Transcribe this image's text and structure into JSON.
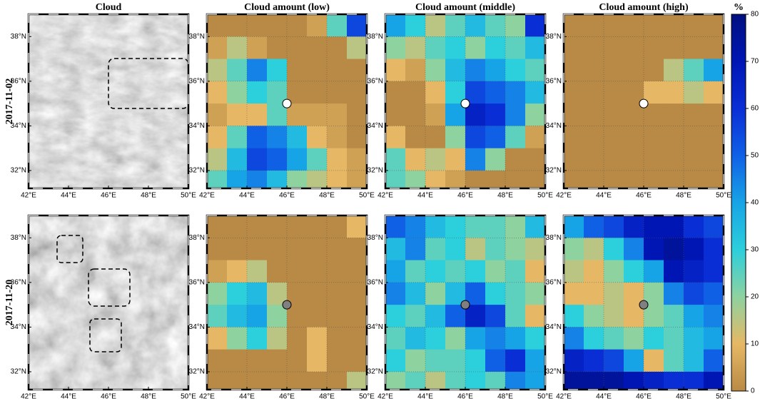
{
  "chart_data": {
    "type": "heatmap",
    "column_titles": [
      "Cloud",
      "Cloud amount (low)",
      "Cloud amount (middle)",
      "Cloud amount (high)"
    ],
    "xlim": [
      42,
      50
    ],
    "ylim": [
      31.2,
      39
    ],
    "xticks": [
      {
        "value": 42,
        "label": "42°E"
      },
      {
        "value": 44,
        "label": "44°E"
      },
      {
        "value": 46,
        "label": "46°E"
      },
      {
        "value": 48,
        "label": "48°E"
      },
      {
        "value": 50,
        "label": "50°E"
      }
    ],
    "yticks": [
      {
        "value": 32,
        "label": "32°N"
      },
      {
        "value": 34,
        "label": "34°N"
      },
      {
        "value": 36,
        "label": "36°N"
      },
      {
        "value": 38,
        "label": "38°N"
      }
    ],
    "cell_lon_edges": [
      42,
      43,
      44,
      45,
      46,
      47,
      48,
      49,
      50
    ],
    "cell_lat_edges": [
      39,
      38,
      37,
      36,
      35,
      34,
      33,
      32,
      31
    ],
    "station": {
      "lon": 46,
      "lat": 35
    },
    "colorbar": {
      "label": "%",
      "clim": [
        0,
        80
      ],
      "ticks": [
        0,
        10,
        20,
        30,
        40,
        50,
        60,
        70,
        80
      ],
      "colors": [
        "#b88a45",
        "#e6b865",
        "#8ed2a0",
        "#2ccfdc",
        "#17a4e6",
        "#1060e6",
        "#0a2ed6",
        "#0016b4",
        "#001080"
      ]
    },
    "rows": [
      {
        "label": "2017-11-02",
        "station_color": "#ffffff",
        "heatmaps": [
          [
            [
              0,
              0,
              0,
              0,
              0,
              5,
              25,
              55
            ],
            [
              5,
              15,
              5,
              0,
              0,
              0,
              0,
              15
            ],
            [
              15,
              25,
              45,
              30,
              0,
              0,
              0,
              0
            ],
            [
              10,
              20,
              30,
              25,
              0,
              0,
              0,
              0
            ],
            [
              5,
              10,
              10,
              25,
              5,
              5,
              5,
              0
            ],
            [
              10,
              25,
              50,
              45,
              35,
              10,
              5,
              0
            ],
            [
              15,
              35,
              55,
              50,
              40,
              25,
              10,
              5
            ],
            [
              25,
              40,
              45,
              35,
              20,
              15,
              10,
              5
            ]
          ],
          [
            [
              40,
              30,
              15,
              25,
              35,
              25,
              20,
              60
            ],
            [
              20,
              15,
              25,
              30,
              20,
              30,
              25,
              35
            ],
            [
              10,
              5,
              20,
              35,
              45,
              40,
              30,
              25
            ],
            [
              0,
              0,
              10,
              30,
              55,
              50,
              45,
              35
            ],
            [
              0,
              0,
              5,
              40,
              65,
              60,
              45,
              20
            ],
            [
              10,
              0,
              0,
              20,
              55,
              50,
              25,
              5
            ],
            [
              25,
              10,
              15,
              10,
              45,
              20,
              0,
              0
            ],
            [
              25,
              20,
              10,
              5,
              0,
              0,
              0,
              0
            ]
          ],
          [
            [
              0,
              0,
              0,
              0,
              0,
              0,
              0,
              0
            ],
            [
              0,
              0,
              0,
              0,
              0,
              0,
              0,
              0
            ],
            [
              0,
              0,
              0,
              0,
              0,
              15,
              25,
              40
            ],
            [
              0,
              0,
              0,
              0,
              10,
              10,
              15,
              10
            ],
            [
              0,
              0,
              0,
              0,
              0,
              0,
              0,
              0
            ],
            [
              0,
              0,
              0,
              0,
              0,
              0,
              0,
              0
            ],
            [
              0,
              0,
              0,
              0,
              0,
              0,
              0,
              0
            ],
            [
              0,
              0,
              0,
              0,
              0,
              0,
              0,
              0
            ]
          ]
        ]
      },
      {
        "label": "2017-11-20",
        "station_color": "#808080",
        "heatmaps": [
          [
            [
              0,
              0,
              0,
              0,
              0,
              0,
              0,
              10
            ],
            [
              0,
              0,
              0,
              0,
              0,
              0,
              0,
              0
            ],
            [
              5,
              10,
              15,
              0,
              0,
              0,
              0,
              0
            ],
            [
              20,
              30,
              35,
              15,
              0,
              0,
              0,
              0
            ],
            [
              25,
              35,
              40,
              20,
              0,
              0,
              0,
              0
            ],
            [
              10,
              20,
              30,
              15,
              0,
              10,
              0,
              0
            ],
            [
              0,
              0,
              0,
              0,
              0,
              10,
              0,
              0
            ],
            [
              0,
              0,
              0,
              0,
              0,
              0,
              0,
              15
            ]
          ],
          [
            [
              50,
              45,
              35,
              30,
              25,
              25,
              20,
              35
            ],
            [
              35,
              45,
              25,
              30,
              15,
              25,
              20,
              15
            ],
            [
              40,
              25,
              30,
              25,
              30,
              20,
              25,
              10
            ],
            [
              45,
              35,
              20,
              35,
              50,
              30,
              25,
              20
            ],
            [
              30,
              25,
              35,
              50,
              65,
              55,
              25,
              10
            ],
            [
              25,
              35,
              30,
              20,
              40,
              45,
              40,
              30
            ],
            [
              30,
              20,
              25,
              25,
              30,
              50,
              60,
              40
            ],
            [
              20,
              25,
              15,
              25,
              30,
              25,
              45,
              40
            ]
          ],
          [
            [
              40,
              50,
              55,
              65,
              70,
              70,
              60,
              55
            ],
            [
              20,
              15,
              30,
              45,
              70,
              75,
              70,
              60
            ],
            [
              15,
              10,
              20,
              30,
              40,
              70,
              65,
              60
            ],
            [
              10,
              10,
              15,
              10,
              20,
              45,
              55,
              50
            ],
            [
              30,
              20,
              15,
              10,
              20,
              25,
              40,
              45
            ],
            [
              45,
              30,
              25,
              20,
              30,
              25,
              35,
              40
            ],
            [
              65,
              60,
              55,
              40,
              10,
              25,
              35,
              50
            ],
            [
              75,
              75,
              75,
              70,
              65,
              60,
              60,
              70
            ]
          ]
        ]
      }
    ]
  }
}
